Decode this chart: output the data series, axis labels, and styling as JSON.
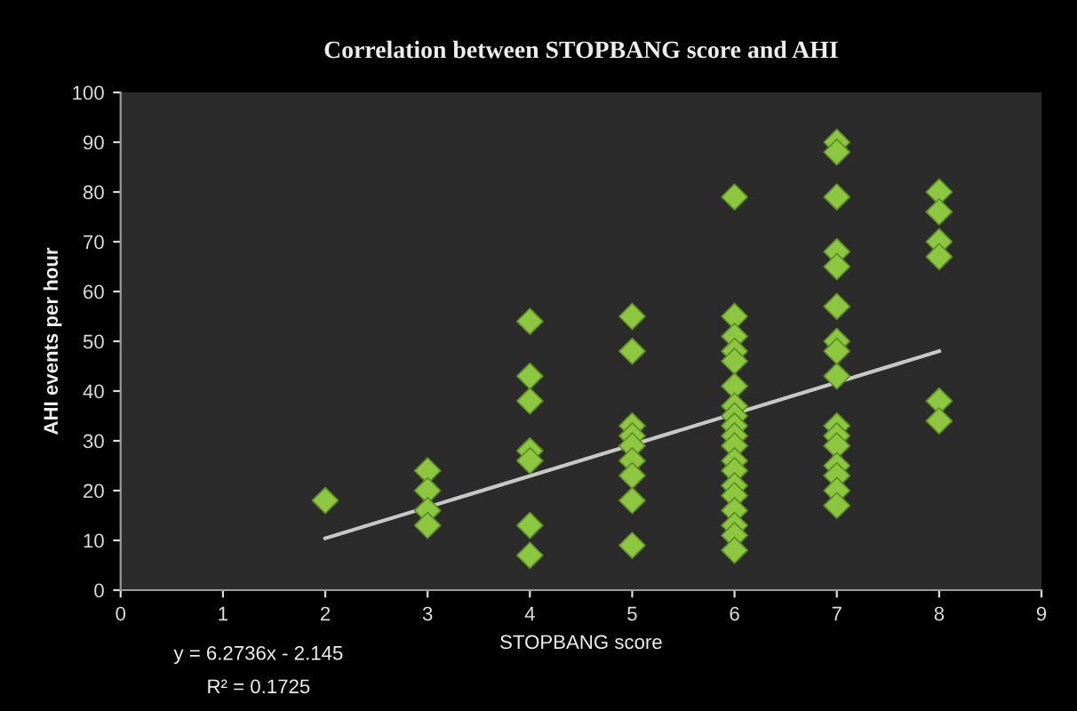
{
  "chart_data": {
    "type": "scatter",
    "title": "Correlation between STOPBANG score and AHI",
    "xlabel": "STOPBANG score",
    "ylabel": "AHI events per hour",
    "xlim": [
      0,
      9
    ],
    "xticks": [
      0,
      1,
      2,
      3,
      4,
      5,
      6,
      7,
      8,
      9
    ],
    "ylim": [
      0,
      100
    ],
    "yticks": [
      0,
      10,
      20,
      30,
      40,
      50,
      60,
      70,
      80,
      90,
      100
    ],
    "grid": false,
    "series": [
      {
        "marker": "diamond",
        "color": "#8dc63f",
        "x": [
          2,
          3,
          3,
          3,
          3,
          4,
          4,
          4,
          4,
          4,
          4,
          4,
          5,
          5,
          5,
          5,
          5,
          5,
          5,
          5,
          5,
          6,
          6,
          6,
          6,
          6,
          6,
          6,
          6,
          6,
          6,
          6,
          6,
          6,
          6,
          6,
          6,
          6,
          6,
          6,
          7,
          7,
          7,
          7,
          7,
          7,
          7,
          7,
          7,
          7,
          7,
          7,
          7,
          7,
          7,
          7,
          8,
          8,
          8,
          8,
          8,
          8
        ],
        "values": [
          18,
          24,
          20,
          16,
          13,
          54,
          43,
          38,
          28,
          26,
          13,
          7,
          55,
          48,
          33,
          31,
          29,
          26,
          23,
          18,
          9,
          79,
          55,
          51,
          48,
          46,
          41,
          37,
          35,
          33,
          31,
          29,
          26,
          24,
          21,
          19,
          16,
          13,
          11,
          8,
          90,
          88,
          79,
          68,
          65,
          57,
          50,
          48,
          43,
          33,
          31,
          29,
          25,
          23,
          20,
          17,
          80,
          76,
          70,
          67,
          38,
          34
        ]
      },
      {
        "type": "line",
        "color": "#c8c8c8",
        "x": [
          2,
          8
        ],
        "values": [
          10.4,
          48.0
        ]
      }
    ],
    "annotations": [
      "y = 6.2736x - 2.145",
      "R² = 0.1725"
    ]
  }
}
